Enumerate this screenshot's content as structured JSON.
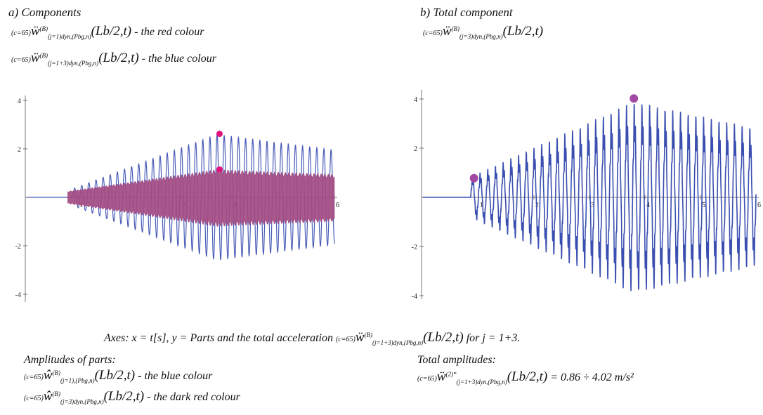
{
  "panel_a": {
    "title": "a) Components",
    "formula1": {
      "c": "(c=65)",
      "w": "ẅ",
      "sup": "(B)",
      "sub": "(j=1)dyn,(Pbg,n)",
      "arg": "(Lb/2,t)",
      "note": " - the red colour"
    },
    "formula2": {
      "c": "(c=65)",
      "w": "ẅ",
      "sup": "(B)",
      "sub": "(j=1+3)dyn,(Pbg,n)",
      "arg": "(Lb/2,t)",
      "note": " - the blue colour"
    }
  },
  "panel_b": {
    "title": "b) Total component",
    "formula": {
      "c": "(c=65)",
      "w": "ẅ",
      "sup": "(B)",
      "sub": "(j=3)dyn,(Pbg,n)",
      "arg": "(Lb/2,t)"
    }
  },
  "axes_caption": {
    "lead": "Axes: x = t[s], y = Parts and the total acceleration",
    "c": "(c=65)",
    "w": "ẅ",
    "sup": "(B)",
    "sub": "(j=1+3)dyn,(Pbg,n)",
    "arg": "(Lb/2,t)",
    "tail": " for j = 1+3."
  },
  "amplitudes_parts": {
    "title": "Amplitudes of parts:",
    "line1": {
      "c": "(c=65)",
      "w": "ŵ",
      "sup": "(B)",
      "sub": "(j=1),(Pbg,n)",
      "arg": "(Lb/2,t)",
      "note": " - the blue colour"
    },
    "line2": {
      "c": "(c=65)",
      "w": "ŵ",
      "sup": "(B)",
      "sub": "(j=3)dyn,(Pbg,n)",
      "arg": "(Lb/2,t)",
      "note": " - the dark red colour"
    }
  },
  "total_amplitudes": {
    "title": "Total amplitudes:",
    "line": {
      "c": "(c=65)",
      "w": "ẅ",
      "sup": "(2)*",
      "sub": "(j=1+3)dyn,(Pbg,n)",
      "arg": "(Lb/2,t)",
      "note": " = 0.86 ÷ 4.02 m/s²"
    }
  },
  "chart_data": [
    {
      "type": "line",
      "panel": "a",
      "title": "",
      "xlabel": "",
      "ylabel": "",
      "xlim": [
        0,
        6
      ],
      "ylim": [
        -4,
        4
      ],
      "x_ticks": [
        "1",
        "2",
        "3",
        "4",
        "5",
        "6"
      ],
      "y_ticks": [
        "4",
        "2",
        "-2",
        "-4"
      ],
      "series": [
        {
          "color": "#4a5cb8",
          "onset": 0.9,
          "freq_hz": 7.2,
          "amp_envelope": [
            [
              0.9,
              0.35
            ],
            [
              3.7,
              2.6
            ],
            [
              6.0,
              1.95
            ]
          ]
        },
        {
          "color": "#a24b82",
          "onset": 0.8,
          "filled_band": true,
          "amp_envelope": [
            [
              0.8,
              0.25
            ],
            [
              3.7,
              1.15
            ],
            [
              6.0,
              0.95
            ]
          ]
        }
      ],
      "markers": [
        {
          "x": 3.76,
          "y": 2.62,
          "color": "#e0157e"
        },
        {
          "x": 3.76,
          "y": 1.15,
          "color": "#e0157e"
        }
      ]
    },
    {
      "type": "line",
      "panel": "b",
      "title": "",
      "xlabel": "",
      "ylabel": "",
      "xlim": [
        0,
        6
      ],
      "ylim": [
        -4,
        4
      ],
      "x_ticks": [
        "1",
        "2",
        "3",
        "4",
        "5",
        "6"
      ],
      "y_ticks": [
        "4",
        "2",
        "-2",
        "-4"
      ],
      "series": [
        {
          "color": "#3b4fb0",
          "onset": 0.86,
          "freq_hz": 7.2,
          "amp_envelope": [
            [
              0.86,
              0.86
            ],
            [
              3.8,
              4.02
            ],
            [
              6.0,
              2.9
            ]
          ]
        }
      ],
      "markers": [
        {
          "x": 0.92,
          "y": 0.78,
          "color": "#a24aa3"
        },
        {
          "x": 3.8,
          "y": 4.02,
          "color": "#a24aa3"
        }
      ]
    }
  ]
}
